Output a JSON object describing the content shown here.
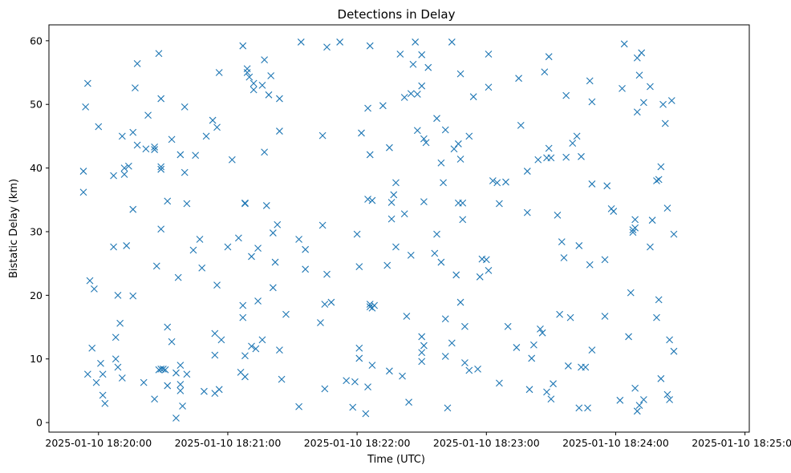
{
  "chart_data": {
    "type": "scatter",
    "title": "Detections in Delay",
    "xlabel": "Time (UTC)",
    "ylabel": "Bistatic Delay (km)",
    "marker": "x",
    "color": "#1f77b4",
    "x_unit": "seconds after 2025-01-10 18:20:00",
    "xlim": [
      -23,
      302
    ],
    "ylim": [
      -1.5,
      62.5
    ],
    "x_ticks": [
      0,
      60,
      120,
      180,
      240,
      300
    ],
    "x_tick_labels": [
      "2025-01-10 18:20:00",
      "2025-01-10 18:21:00",
      "2025-01-10 18:22:00",
      "2025-01-10 18:23:00",
      "2025-01-10 18:24:00",
      "2025-01-10 18:25:00"
    ],
    "y_ticks": [
      0,
      10,
      20,
      30,
      40,
      50,
      60
    ],
    "y_tick_labels": [
      "0",
      "10",
      "20",
      "30",
      "40",
      "50",
      "60"
    ],
    "points": [
      [
        -7,
        36.2
      ],
      [
        -7,
        39.5
      ],
      [
        -6,
        49.6
      ],
      [
        -5,
        53.3
      ],
      [
        -5,
        7.6
      ],
      [
        -4,
        22.3
      ],
      [
        -3,
        11.7
      ],
      [
        -2,
        21.0
      ],
      [
        -1,
        6.3
      ],
      [
        0,
        46.5
      ],
      [
        1,
        9.3
      ],
      [
        2,
        4.3
      ],
      [
        2,
        7.6
      ],
      [
        3,
        3.0
      ],
      [
        7,
        27.6
      ],
      [
        7,
        38.8
      ],
      [
        8,
        10.0
      ],
      [
        8,
        13.4
      ],
      [
        9,
        20.0
      ],
      [
        9,
        8.7
      ],
      [
        10,
        15.6
      ],
      [
        11,
        7.0
      ],
      [
        11,
        45.0
      ],
      [
        12,
        39.0
      ],
      [
        12,
        40.0
      ],
      [
        13,
        27.8
      ],
      [
        14,
        40.3
      ],
      [
        16,
        19.9
      ],
      [
        16,
        45.6
      ],
      [
        16,
        33.5
      ],
      [
        17,
        52.6
      ],
      [
        18,
        56.4
      ],
      [
        18,
        43.6
      ],
      [
        21,
        6.3
      ],
      [
        22,
        43.0
      ],
      [
        23,
        48.3
      ],
      [
        26,
        43.3
      ],
      [
        26,
        42.9
      ],
      [
        26,
        3.7
      ],
      [
        27,
        24.6
      ],
      [
        28,
        58.0
      ],
      [
        28,
        8.3
      ],
      [
        29,
        40.2
      ],
      [
        29,
        39.8
      ],
      [
        29,
        50.9
      ],
      [
        29,
        30.4
      ],
      [
        29,
        8.4
      ],
      [
        30,
        8.4
      ],
      [
        31,
        8.3
      ],
      [
        32,
        15.0
      ],
      [
        32,
        34.8
      ],
      [
        32,
        5.8
      ],
      [
        34,
        44.5
      ],
      [
        34,
        12.7
      ],
      [
        36,
        0.7
      ],
      [
        36,
        7.8
      ],
      [
        37,
        22.8
      ],
      [
        38,
        9.0
      ],
      [
        38,
        6.0
      ],
      [
        38,
        5.0
      ],
      [
        38,
        42.1
      ],
      [
        39,
        2.6
      ],
      [
        40,
        49.6
      ],
      [
        40,
        39.3
      ],
      [
        41,
        34.4
      ],
      [
        41,
        7.6
      ],
      [
        44,
        27.1
      ],
      [
        45,
        42.0
      ],
      [
        47,
        28.8
      ],
      [
        48,
        24.3
      ],
      [
        49,
        4.9
      ],
      [
        50,
        45.0
      ],
      [
        53,
        47.5
      ],
      [
        54,
        4.6
      ],
      [
        54,
        14.0
      ],
      [
        54,
        10.6
      ],
      [
        55,
        21.6
      ],
      [
        55,
        46.4
      ],
      [
        56,
        5.2
      ],
      [
        56,
        55.0
      ],
      [
        57,
        13.0
      ],
      [
        60,
        27.6
      ],
      [
        62,
        41.3
      ],
      [
        65,
        29.0
      ],
      [
        66,
        7.9
      ],
      [
        67,
        59.2
      ],
      [
        67,
        18.4
      ],
      [
        67,
        16.5
      ],
      [
        68,
        10.5
      ],
      [
        68,
        34.4
      ],
      [
        68,
        34.5
      ],
      [
        68,
        7.2
      ],
      [
        69,
        55.6
      ],
      [
        69,
        55.0
      ],
      [
        70,
        54.3
      ],
      [
        71,
        26.1
      ],
      [
        71,
        12.0
      ],
      [
        72,
        53.3
      ],
      [
        72,
        52.3
      ],
      [
        73,
        11.6
      ],
      [
        74,
        27.4
      ],
      [
        74,
        19.1
      ],
      [
        76,
        13.0
      ],
      [
        76,
        53.0
      ],
      [
        77,
        57.0
      ],
      [
        77,
        42.5
      ],
      [
        78,
        34.1
      ],
      [
        79,
        51.5
      ],
      [
        80,
        54.5
      ],
      [
        81,
        21.2
      ],
      [
        81,
        29.8
      ],
      [
        82,
        25.2
      ],
      [
        83,
        31.1
      ],
      [
        84,
        50.9
      ],
      [
        84,
        45.8
      ],
      [
        84,
        11.4
      ],
      [
        85,
        6.8
      ],
      [
        87,
        17.0
      ],
      [
        93,
        28.8
      ],
      [
        93,
        2.5
      ],
      [
        94,
        59.8
      ],
      [
        96,
        24.1
      ],
      [
        96,
        27.2
      ],
      [
        103,
        15.7
      ],
      [
        104,
        45.1
      ],
      [
        104,
        31.0
      ],
      [
        105,
        5.3
      ],
      [
        105,
        18.6
      ],
      [
        106,
        23.3
      ],
      [
        106,
        59.0
      ],
      [
        108,
        18.9
      ],
      [
        112,
        59.8
      ],
      [
        115,
        6.6
      ],
      [
        118,
        2.4
      ],
      [
        119,
        6.4
      ],
      [
        120,
        29.6
      ],
      [
        121,
        24.5
      ],
      [
        121,
        11.7
      ],
      [
        121,
        10.1
      ],
      [
        122,
        45.5
      ],
      [
        124,
        1.4
      ],
      [
        125,
        35.1
      ],
      [
        125,
        49.4
      ],
      [
        125,
        5.6
      ],
      [
        126,
        59.2
      ],
      [
        126,
        42.1
      ],
      [
        126,
        18.6
      ],
      [
        126,
        18.2
      ],
      [
        127,
        18.0
      ],
      [
        127,
        34.9
      ],
      [
        127,
        9.0
      ],
      [
        128,
        18.4
      ],
      [
        132,
        49.8
      ],
      [
        134,
        24.7
      ],
      [
        135,
        8.1
      ],
      [
        135,
        43.2
      ],
      [
        136,
        32.0
      ],
      [
        136,
        34.6
      ],
      [
        137,
        35.8
      ],
      [
        138,
        37.7
      ],
      [
        138,
        27.6
      ],
      [
        140,
        57.9
      ],
      [
        141,
        7.3
      ],
      [
        142,
        32.8
      ],
      [
        142,
        51.1
      ],
      [
        143,
        16.7
      ],
      [
        144,
        3.2
      ],
      [
        145,
        26.3
      ],
      [
        145,
        51.7
      ],
      [
        146,
        56.3
      ],
      [
        147,
        59.8
      ],
      [
        148,
        51.6
      ],
      [
        148,
        45.9
      ],
      [
        150,
        57.8
      ],
      [
        150,
        52.9
      ],
      [
        150,
        13.5
      ],
      [
        150,
        11.0
      ],
      [
        150,
        9.6
      ],
      [
        151,
        34.7
      ],
      [
        151,
        44.6
      ],
      [
        151,
        12.1
      ],
      [
        152,
        44.0
      ],
      [
        153,
        55.8
      ],
      [
        156,
        26.6
      ],
      [
        157,
        47.8
      ],
      [
        157,
        29.6
      ],
      [
        159,
        40.8
      ],
      [
        159,
        25.2
      ],
      [
        160,
        37.7
      ],
      [
        161,
        46.0
      ],
      [
        161,
        16.3
      ],
      [
        161,
        10.4
      ],
      [
        162,
        2.3
      ],
      [
        164,
        12.5
      ],
      [
        164,
        59.8
      ],
      [
        165,
        43.0
      ],
      [
        166,
        23.2
      ],
      [
        167,
        43.8
      ],
      [
        167,
        34.5
      ],
      [
        168,
        41.4
      ],
      [
        168,
        54.8
      ],
      [
        168,
        18.9
      ],
      [
        169,
        34.5
      ],
      [
        169,
        31.9
      ],
      [
        170,
        9.4
      ],
      [
        170,
        15.1
      ],
      [
        172,
        8.2
      ],
      [
        172,
        45.0
      ],
      [
        174,
        51.2
      ],
      [
        176,
        8.4
      ],
      [
        177,
        22.9
      ],
      [
        178,
        25.7
      ],
      [
        180,
        25.6
      ],
      [
        181,
        23.9
      ],
      [
        181,
        52.7
      ],
      [
        181,
        57.9
      ],
      [
        183,
        38.0
      ],
      [
        185,
        37.7
      ],
      [
        186,
        6.2
      ],
      [
        186,
        34.4
      ],
      [
        189,
        37.8
      ],
      [
        190,
        15.1
      ],
      [
        194,
        11.8
      ],
      [
        195,
        54.1
      ],
      [
        196,
        46.7
      ],
      [
        199,
        39.5
      ],
      [
        199,
        33.0
      ],
      [
        200,
        5.2
      ],
      [
        201,
        10.1
      ],
      [
        202,
        12.2
      ],
      [
        204,
        41.3
      ],
      [
        205,
        14.7
      ],
      [
        206,
        14.1
      ],
      [
        207,
        55.1
      ],
      [
        208,
        41.6
      ],
      [
        208,
        4.8
      ],
      [
        209,
        43.1
      ],
      [
        209,
        57.5
      ],
      [
        210,
        41.6
      ],
      [
        210,
        3.7
      ],
      [
        211,
        6.1
      ],
      [
        213,
        32.6
      ],
      [
        214,
        17.0
      ],
      [
        215,
        28.4
      ],
      [
        216,
        25.9
      ],
      [
        217,
        51.4
      ],
      [
        217,
        41.7
      ],
      [
        218,
        8.9
      ],
      [
        219,
        16.5
      ],
      [
        220,
        43.9
      ],
      [
        222,
        45.0
      ],
      [
        223,
        27.8
      ],
      [
        223,
        2.3
      ],
      [
        224,
        8.7
      ],
      [
        224,
        41.8
      ],
      [
        226,
        8.7
      ],
      [
        227,
        2.3
      ],
      [
        228,
        24.8
      ],
      [
        228,
        53.7
      ],
      [
        229,
        50.4
      ],
      [
        229,
        37.5
      ],
      [
        229,
        11.4
      ],
      [
        235,
        25.6
      ],
      [
        235,
        16.7
      ],
      [
        236,
        37.2
      ],
      [
        238,
        33.6
      ],
      [
        239,
        33.2
      ],
      [
        242,
        3.5
      ],
      [
        243,
        52.5
      ],
      [
        244,
        59.5
      ],
      [
        246,
        13.5
      ],
      [
        247,
        20.4
      ],
      [
        248,
        30.3
      ],
      [
        248,
        29.9
      ],
      [
        249,
        30.6
      ],
      [
        249,
        31.9
      ],
      [
        249,
        5.4
      ],
      [
        250,
        57.3
      ],
      [
        250,
        48.8
      ],
      [
        250,
        1.8
      ],
      [
        251,
        54.6
      ],
      [
        251,
        2.7
      ],
      [
        252,
        58.1
      ],
      [
        253,
        50.3
      ],
      [
        253,
        3.6
      ],
      [
        256,
        52.8
      ],
      [
        256,
        27.6
      ],
      [
        257,
        31.8
      ],
      [
        259,
        16.5
      ],
      [
        259,
        38.0
      ],
      [
        260,
        38.2
      ],
      [
        260,
        19.3
      ],
      [
        261,
        40.2
      ],
      [
        261,
        6.9
      ],
      [
        262,
        50.0
      ],
      [
        263,
        47.0
      ],
      [
        264,
        33.7
      ],
      [
        264,
        4.4
      ],
      [
        265,
        3.6
      ],
      [
        265,
        13.0
      ],
      [
        266,
        50.6
      ],
      [
        267,
        29.6
      ],
      [
        267,
        11.2
      ]
    ]
  }
}
